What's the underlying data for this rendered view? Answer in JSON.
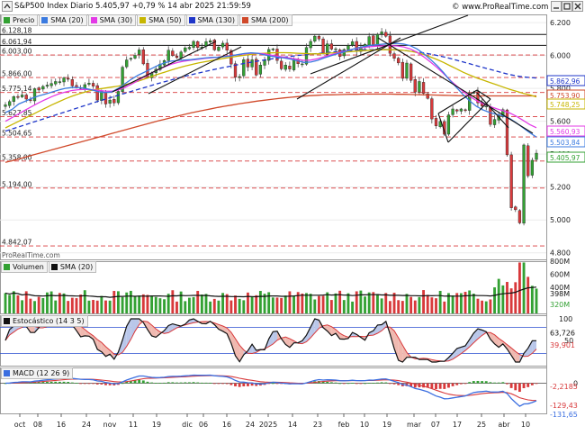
{
  "window": {
    "title": "S&P500 Index Diario 5.405,97 +0,79 % 14 abr 2025 21:59:59",
    "brand": "© www.ProRealTime.com",
    "watermark": "ProRealTime.com"
  },
  "colors": {
    "up": "#33a133",
    "down": "#d8393b",
    "sma20": "#3b7be0",
    "sma30": "#e33ae6",
    "sma50": "#c7b600",
    "sma130": "#1f36c9",
    "sma200": "#d0492a",
    "volume_up": "#33a133",
    "volume_down": "#d8393b",
    "volume_sma": "#111111",
    "stoch_k": "#111111",
    "stoch_d": "#d8393b",
    "macd": "#3b6ee0",
    "signal": "#d8393b"
  },
  "legend_price": [
    "Precio",
    "SMA (20)",
    "SMA (30)",
    "SMA (50)",
    "SMA (130)",
    "SMA (200)"
  ],
  "legend_volume": [
    "Volumen",
    "SMA (20)"
  ],
  "legend_stoch": [
    "Estocástico (14 3 5)"
  ],
  "legend_macd": [
    "MACD (12 26 9)"
  ],
  "chart_data": {
    "type": "candlestick",
    "title": "S&P500 Index Diario",
    "price_axis": {
      "ticks": [
        4800,
        5000,
        5200,
        5400,
        5600,
        5800,
        6000,
        6200
      ],
      "tick_labels": [
        "4.800",
        "5.000",
        "5.200",
        "5.400",
        "5.600",
        "5.800",
        "6.000",
        "6.200"
      ],
      "ylim": [
        4760,
        6250
      ]
    },
    "horizontal_levels": [
      6128.18,
      6061.94,
      6003.0,
      5866.0,
      5775.14,
      5627.85,
      5504.65,
      5358.0,
      5194.0,
      4842.07
    ],
    "level_labels": [
      "6.128,18",
      "6.061,94",
      "6.003,00",
      "5.866,00",
      "5.775,14",
      "5.627,85",
      "5.504,65",
      "5.358,00",
      "5.194,00",
      "4.842,07"
    ],
    "right_labels": [
      {
        "text": "5.862,96",
        "color": "#1f36c9"
      },
      {
        "text": "5.753,90",
        "color": "#d0492a"
      },
      {
        "text": "5.748,25",
        "color": "#c7b600"
      },
      {
        "text": "5.560,93",
        "color": "#e33ae6"
      },
      {
        "text": "5.503,84",
        "color": "#3b7be0"
      },
      {
        "text": "5.405,97",
        "color": "#33a133"
      }
    ],
    "x_tick_labels": [
      "oct",
      "08",
      "16",
      "24",
      "nov",
      "11",
      "19",
      "dic",
      "06",
      "16",
      "24",
      "2025",
      "14",
      "23",
      "feb",
      "10",
      "19",
      "mar",
      "07",
      "17",
      "25",
      "abr",
      "10"
    ],
    "x_tick_dates": [
      "2024-10-01",
      "2024-10-08",
      "2024-10-16",
      "2024-10-24",
      "2024-11-01",
      "2024-11-11",
      "2024-11-19",
      "2024-12-02",
      "2024-12-06",
      "2024-12-16",
      "2024-12-24",
      "2025-01-02",
      "2025-01-14",
      "2025-01-23",
      "2025-02-03",
      "2025-02-10",
      "2025-02-19",
      "2025-03-03",
      "2025-03-07",
      "2025-03-17",
      "2025-03-25",
      "2025-04-01",
      "2025-04-10"
    ],
    "close_path": [
      5700,
      5720,
      5750,
      5745,
      5760,
      5735,
      5728,
      5798,
      5790,
      5812,
      5820,
      5830,
      5842,
      5841,
      5864,
      5857,
      5815,
      5808,
      5800,
      5823,
      5832,
      5813,
      5729,
      5782,
      5705,
      5729,
      5712,
      5782,
      5929,
      5973,
      5983,
      6001,
      6034,
      5949,
      5870,
      5893,
      5917,
      5948,
      5969,
      6032,
      5999,
      5987,
      6021,
      6047,
      6050,
      6086,
      6048,
      6052,
      6084,
      6090,
      6034,
      6051,
      6075,
      6032,
      5948,
      5868,
      5872,
      5975,
      5930,
      5974,
      5881,
      5942,
      5970,
      6037,
      6040,
      5970,
      5919,
      5942,
      5918,
      5975,
      5950,
      5949,
      6049,
      6086,
      6118,
      6101,
      6012,
      6071,
      6039,
      6041,
      5994,
      6037,
      6061,
      6084,
      6026,
      6051,
      6068,
      6115,
      6066,
      6129,
      6144,
      6117,
      6013,
      5983,
      5955,
      5861,
      5954,
      5849,
      5778,
      5842,
      5770,
      5739,
      5614,
      5572,
      5599,
      5521,
      5639,
      5675,
      5662,
      5675,
      5667,
      5768,
      5776,
      5712,
      5693,
      5693,
      5581,
      5611,
      5633,
      5671,
      5396,
      5074,
      5062,
      4982,
      5456,
      5268,
      5363,
      5406
    ],
    "sma20": [
      5653,
      5672,
      5705,
      5722,
      5740,
      5754,
      5765,
      5778,
      5790,
      5800,
      5805,
      5806,
      5800,
      5791,
      5780,
      5775,
      5778,
      5800,
      5828,
      5856,
      5880,
      5900,
      5920,
      5940,
      5956,
      5966,
      5970,
      5972,
      5975,
      5980,
      5985,
      5988,
      5990,
      5993,
      5998,
      6005,
      6012,
      6016,
      6014,
      6004,
      5996,
      5990,
      5985,
      5978,
      5968,
      5958,
      5960,
      5970,
      5985,
      5998,
      6010,
      6021,
      6034,
      6046,
      6055,
      6062,
      6066,
      6070,
      6073,
      6074,
      6070,
      6060,
      6040,
      6012,
      5978,
      5940,
      5896,
      5848,
      5804,
      5760,
      5722,
      5690,
      5668,
      5653,
      5642,
      5633,
      5616,
      5590,
      5560,
      5530,
      5504
    ],
    "sma30": [
      5600,
      5622,
      5645,
      5668,
      5690,
      5712,
      5732,
      5750,
      5766,
      5778,
      5787,
      5792,
      5794,
      5792,
      5788,
      5784,
      5783,
      5790,
      5806,
      5826,
      5848,
      5872,
      5894,
      5914,
      5932,
      5947,
      5958,
      5966,
      5972,
      5977,
      5982,
      5986,
      5990,
      5994,
      5999,
      6004,
      6010,
      6014,
      6014,
      6010,
      6003,
      5996,
      5990,
      5984,
      5977,
      5970,
      5972,
      5980,
      5992,
      6004,
      6015,
      6025,
      6035,
      6044,
      6050,
      6054,
      6057,
      6059,
      6060,
      6058,
      6052,
      6040,
      6020,
      5993,
      5962,
      5928,
      5890,
      5850,
      5814,
      5780,
      5750,
      5725,
      5706,
      5690,
      5676,
      5664,
      5650,
      5630,
      5605,
      5580,
      5561
    ],
    "sma50": [
      5560,
      5580,
      5600,
      5620,
      5640,
      5660,
      5680,
      5700,
      5718,
      5736,
      5752,
      5766,
      5778,
      5788,
      5796,
      5802,
      5808,
      5814,
      5822,
      5832,
      5844,
      5858,
      5872,
      5886,
      5899,
      5912,
      5924,
      5935,
      5945,
      5954,
      5962,
      5969,
      5976,
      5983,
      5990,
      5996,
      6002,
      6007,
      6011,
      6014,
      6016,
      6017,
      6017,
      6016,
      6014,
      6012,
      6010,
      6010,
      6012,
      6015,
      6018,
      6021,
      6024,
      6027,
      6030,
      6032,
      6034,
      6035,
      6035,
      6034,
      6031,
      6026,
      6018,
      6006,
      5992,
      5976,
      5958,
      5938,
      5918,
      5898,
      5880,
      5864,
      5850,
      5836,
      5822,
      5808,
      5794,
      5782,
      5770,
      5760,
      5748
    ],
    "sma130": [
      5540,
      5553,
      5566,
      5579,
      5592,
      5605,
      5618,
      5631,
      5644,
      5657,
      5670,
      5683,
      5696,
      5709,
      5722,
      5734,
      5746,
      5758,
      5770,
      5782,
      5794,
      5806,
      5818,
      5830,
      5841,
      5852,
      5863,
      5873,
      5883,
      5893,
      5902,
      5911,
      5920,
      5928,
      5936,
      5944,
      5952,
      5959,
      5966,
      5973,
      5979,
      5985,
      5990,
      5995,
      6000,
      6004,
      6008,
      6012,
      6016,
      6020,
      6024,
      6027,
      6030,
      6033,
      6035,
      6036,
      6037,
      6037,
      6036,
      6034,
      6031,
      6027,
      6022,
      6016,
      6009,
      6001,
      5992,
      5982,
      5971,
      5960,
      5949,
      5938,
      5927,
      5916,
      5905,
      5894,
      5884,
      5876,
      5870,
      5866,
      5863
    ],
    "sma200": [
      5350,
      5360,
      5371,
      5382,
      5393,
      5404,
      5415,
      5426,
      5437,
      5448,
      5459,
      5470,
      5481,
      5492,
      5503,
      5514,
      5525,
      5536,
      5547,
      5558,
      5569,
      5580,
      5591,
      5602,
      5612,
      5622,
      5632,
      5642,
      5651,
      5660,
      5668,
      5676,
      5684,
      5691,
      5698,
      5705,
      5711,
      5717,
      5723,
      5728,
      5733,
      5738,
      5742,
      5746,
      5750,
      5753,
      5756,
      5758,
      5760,
      5761,
      5762,
      5763,
      5764,
      5764,
      5765,
      5765,
      5765,
      5765,
      5765,
      5764,
      5764,
      5763,
      5762,
      5761,
      5760,
      5759,
      5758,
      5757,
      5756,
      5755,
      5755,
      5754,
      5754,
      5754,
      5754,
      5754,
      5754,
      5754,
      5754,
      5754,
      5754
    ],
    "volume": {
      "axis_labels": [
        "800M",
        "600M",
        "400M",
        "398M",
        "320M"
      ],
      "ylim": [
        0,
        800
      ],
      "last_sma20": 398,
      "last_volume": 320
    },
    "stochastic": {
      "axis_labels": [
        "100",
        "50"
      ],
      "ylim": [
        0,
        100
      ],
      "last_k": 63.726,
      "last_d": 39.901,
      "last_k_label": "63,726",
      "last_d_label": "39,901"
    },
    "macd": {
      "axis_labels": [
        "0"
      ],
      "last_hist_label": "-2,2185",
      "last_signal_label": "-129,43",
      "last_macd_label": "-131,65"
    }
  }
}
